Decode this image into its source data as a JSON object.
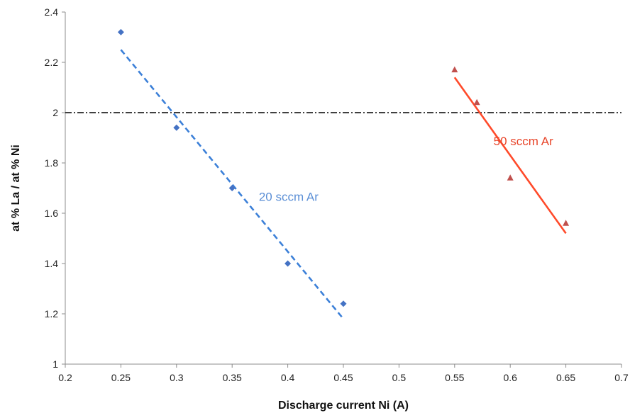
{
  "chart_data": {
    "type": "scatter",
    "title": "",
    "xlabel": "Discharge current Ni (A)",
    "ylabel": "at % La / at % Ni",
    "xlim": [
      0.2,
      0.7
    ],
    "ylim": [
      1,
      2.4
    ],
    "x_ticks": [
      "0.2",
      "0.25",
      "0.3",
      "0.35",
      "0.4",
      "0.45",
      "0.5",
      "0.55",
      "0.6",
      "0.65",
      "0.7"
    ],
    "y_ticks": [
      "1",
      "1.2",
      "1.4",
      "1.6",
      "1.8",
      "2",
      "2.2",
      "2.4"
    ],
    "grid": false,
    "reference_line": {
      "y": 2,
      "style": "dash-dot",
      "color": "#000000"
    },
    "series": [
      {
        "name": "20 sccm Ar",
        "marker": "diamond",
        "color": "#4472C4",
        "x": [
          0.25,
          0.3,
          0.35,
          0.4,
          0.45
        ],
        "y": [
          2.32,
          1.94,
          1.7,
          1.4,
          1.24
        ],
        "trendline": {
          "x": [
            0.25,
            0.45
          ],
          "y": [
            2.25,
            1.18
          ],
          "style": "dashed",
          "color": "#3C80D8"
        }
      },
      {
        "name": "50 sccm Ar",
        "marker": "triangle",
        "color": "#C0504D",
        "x": [
          0.55,
          0.57,
          0.6,
          0.65
        ],
        "y": [
          2.17,
          2.04,
          1.74,
          1.56
        ],
        "trendline": {
          "x": [
            0.55,
            0.65
          ],
          "y": [
            2.14,
            1.52
          ],
          "style": "solid",
          "color": "#FF4A2A"
        }
      }
    ],
    "annotations": [
      {
        "text": "20 sccm Ar",
        "x": 0.374,
        "y": 1.65,
        "color": "#5B8FD6"
      },
      {
        "text": "50 sccm Ar",
        "x": 0.585,
        "y": 1.87,
        "color": "#E8452A"
      }
    ]
  }
}
